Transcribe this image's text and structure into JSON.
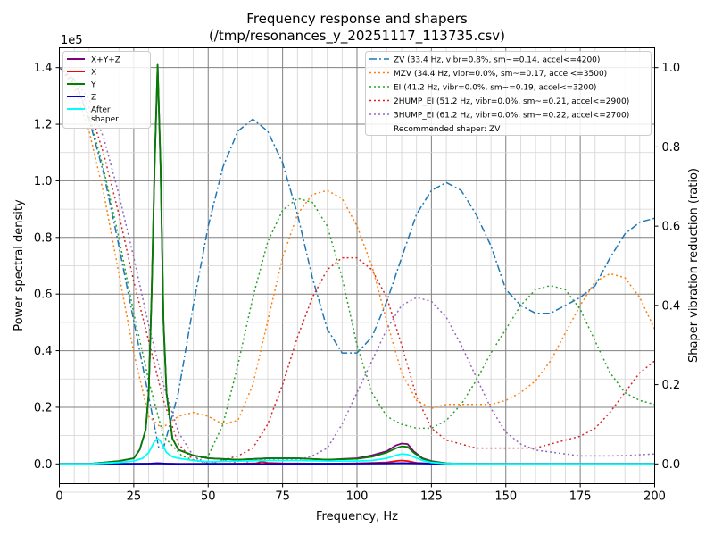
{
  "chart_data": {
    "type": "line",
    "title": "Frequency response and shapers",
    "subtitle": "(/tmp/resonances_y_20251117_113735.csv)",
    "xlabel": "Frequency, Hz",
    "ylabel": "Power spectral density",
    "y2label": "Shaper vibration reduction (ratio)",
    "yscale_label": "1e5",
    "xlim": [
      0,
      200
    ],
    "ylim": [
      -0.07,
      1.47
    ],
    "y2lim": [
      -0.05,
      1.05
    ],
    "xticks": [
      0,
      25,
      50,
      75,
      100,
      125,
      150,
      175,
      200
    ],
    "yticks": [
      0.0,
      0.2,
      0.4,
      0.6,
      0.8,
      1.0,
      1.2,
      1.4
    ],
    "y2ticks": [
      0.0,
      0.2,
      0.4,
      0.6,
      0.8,
      1.0
    ],
    "xtick_labels": [
      "0",
      "25",
      "50",
      "75",
      "100",
      "125",
      "150",
      "175",
      "200"
    ],
    "ytick_labels": [
      "0.0",
      "0.2",
      "0.4",
      "0.6",
      "0.8",
      "1.0",
      "1.2",
      "1.4"
    ],
    "y2tick_labels": [
      "0.0",
      "0.2",
      "0.4",
      "0.6",
      "0.8",
      "1.0"
    ],
    "grid": true,
    "legend_left_position": "top-left",
    "legend_right_position": "top-right",
    "psd_series": [
      {
        "name": "X+Y+Z",
        "color": "#800080",
        "x": [
          0,
          10,
          20,
          25,
          27,
          29,
          30,
          31,
          32,
          33,
          34,
          35,
          36,
          38,
          40,
          45,
          50,
          60,
          70,
          80,
          90,
          100,
          105,
          110,
          113,
          115,
          117,
          119,
          122,
          125,
          130,
          140,
          160,
          200
        ],
        "y": [
          0,
          0,
          0.01,
          0.02,
          0.05,
          0.12,
          0.25,
          0.6,
          1.05,
          1.41,
          1.05,
          0.5,
          0.25,
          0.09,
          0.05,
          0.03,
          0.02,
          0.015,
          0.02,
          0.02,
          0.015,
          0.02,
          0.03,
          0.045,
          0.065,
          0.072,
          0.07,
          0.045,
          0.02,
          0.01,
          0.002,
          0,
          0,
          0
        ]
      },
      {
        "name": "X",
        "color": "#ff0000",
        "x": [
          0,
          30,
          33,
          36,
          40,
          60,
          66,
          68,
          70,
          75,
          90,
          100,
          110,
          113,
          115,
          117,
          120,
          125,
          130,
          200
        ],
        "y": [
          0,
          0.001,
          0.003,
          0.001,
          0,
          0.001,
          0.002,
          0.008,
          0.004,
          0.002,
          0.001,
          0.002,
          0.005,
          0.01,
          0.012,
          0.01,
          0.004,
          0.001,
          0,
          0
        ]
      },
      {
        "name": "Y",
        "color": "#008000",
        "x": [
          0,
          10,
          20,
          25,
          27,
          29,
          30,
          31,
          32,
          33,
          34,
          35,
          36,
          38,
          40,
          45,
          50,
          60,
          70,
          80,
          90,
          100,
          105,
          110,
          113,
          115,
          117,
          119,
          122,
          125,
          130,
          140,
          160,
          200
        ],
        "y": [
          0,
          0,
          0.01,
          0.02,
          0.05,
          0.12,
          0.25,
          0.6,
          1.05,
          1.41,
          1.05,
          0.5,
          0.25,
          0.09,
          0.05,
          0.03,
          0.02,
          0.015,
          0.02,
          0.02,
          0.015,
          0.018,
          0.025,
          0.04,
          0.055,
          0.062,
          0.06,
          0.04,
          0.018,
          0.009,
          0.002,
          0,
          0,
          0
        ]
      },
      {
        "name": "Z",
        "color": "#0000cd",
        "x": [
          0,
          20,
          30,
          33,
          36,
          40,
          60,
          100,
          110,
          115,
          120,
          130,
          200
        ],
        "y": [
          0,
          0,
          0.001,
          0.002,
          0.001,
          0,
          0,
          0.001,
          0.002,
          0.003,
          0.002,
          0,
          0
        ]
      },
      {
        "name": "After shaper",
        "color": "#00ffff",
        "x": [
          0,
          10,
          20,
          25,
          28,
          30,
          31,
          32,
          33,
          34,
          35,
          36,
          38,
          40,
          45,
          50,
          60,
          70,
          80,
          90,
          100,
          105,
          110,
          113,
          115,
          117,
          119,
          122,
          125,
          130,
          140,
          200
        ],
        "y": [
          0,
          0,
          0.005,
          0.01,
          0.02,
          0.04,
          0.06,
          0.08,
          0.09,
          0.08,
          0.06,
          0.04,
          0.025,
          0.02,
          0.012,
          0.008,
          0.01,
          0.012,
          0.012,
          0.01,
          0.01,
          0.012,
          0.02,
          0.03,
          0.035,
          0.033,
          0.025,
          0.012,
          0.005,
          0.001,
          0,
          0
        ]
      }
    ],
    "shaper_series": [
      {
        "name": "ZV (33.4 Hz, vibr=0.8%, sm~=0.14, accel<=4200)",
        "color": "#1f77b4",
        "dash": "8,3,2,3",
        "x": [
          0,
          5,
          10,
          15,
          20,
          25,
          30,
          33.4,
          35,
          40,
          45,
          50,
          55,
          60,
          65,
          70,
          75,
          80,
          85,
          90,
          95,
          100,
          105,
          110,
          115,
          120,
          125,
          130,
          135,
          140,
          145,
          150,
          155,
          160,
          165,
          170,
          175,
          180,
          185,
          190,
          195,
          200
        ],
        "y": [
          1,
          0.97,
          0.87,
          0.73,
          0.55,
          0.36,
          0.17,
          0.04,
          0.04,
          0.18,
          0.4,
          0.6,
          0.75,
          0.84,
          0.87,
          0.84,
          0.76,
          0.63,
          0.47,
          0.34,
          0.28,
          0.28,
          0.32,
          0.41,
          0.52,
          0.63,
          0.69,
          0.71,
          0.69,
          0.63,
          0.55,
          0.44,
          0.4,
          0.38,
          0.38,
          0.4,
          0.42,
          0.45,
          0.52,
          0.58,
          0.61,
          0.62
        ]
      },
      {
        "name": "MZV (34.4 Hz, vibr=0.0%, sm~=0.17, accel<=3500)",
        "color": "#ff7f0e",
        "dash": "2,3",
        "x": [
          0,
          5,
          10,
          15,
          20,
          25,
          30,
          34.4,
          40,
          45,
          50,
          55,
          60,
          65,
          70,
          75,
          80,
          85,
          90,
          95,
          100,
          105,
          110,
          115,
          120,
          125,
          130,
          135,
          140,
          145,
          150,
          155,
          160,
          165,
          170,
          175,
          180,
          185,
          190,
          195,
          200
        ],
        "y": [
          1,
          0.95,
          0.84,
          0.68,
          0.48,
          0.28,
          0.12,
          0.09,
          0.12,
          0.13,
          0.12,
          0.1,
          0.11,
          0.2,
          0.36,
          0.52,
          0.63,
          0.68,
          0.69,
          0.67,
          0.6,
          0.5,
          0.36,
          0.23,
          0.16,
          0.14,
          0.15,
          0.15,
          0.15,
          0.15,
          0.16,
          0.18,
          0.21,
          0.26,
          0.33,
          0.4,
          0.46,
          0.48,
          0.47,
          0.42,
          0.34
        ]
      },
      {
        "name": "EI (41.2 Hz, vibr=0.0%, sm~=0.19, accel<=3200)",
        "color": "#2ca02c",
        "dash": "2,3",
        "x": [
          0,
          5,
          10,
          15,
          20,
          25,
          30,
          35,
          41.2,
          45,
          50,
          55,
          60,
          65,
          70,
          75,
          80,
          85,
          90,
          95,
          100,
          105,
          110,
          115,
          120,
          125,
          130,
          135,
          140,
          145,
          150,
          155,
          160,
          165,
          170,
          175,
          180,
          185,
          190,
          195,
          200
        ],
        "y": [
          1,
          0.96,
          0.88,
          0.74,
          0.57,
          0.38,
          0.21,
          0.07,
          0.02,
          0.01,
          0.02,
          0.1,
          0.25,
          0.42,
          0.56,
          0.64,
          0.67,
          0.66,
          0.6,
          0.47,
          0.3,
          0.18,
          0.12,
          0.1,
          0.09,
          0.09,
          0.11,
          0.15,
          0.21,
          0.28,
          0.34,
          0.4,
          0.44,
          0.45,
          0.44,
          0.39,
          0.31,
          0.23,
          0.18,
          0.16,
          0.15
        ]
      },
      {
        "name": "2HUMP_EI (51.2 Hz, vibr=0.0%, sm~=0.21, accel<=2900)",
        "color": "#d62728",
        "dash": "2,3",
        "x": [
          0,
          5,
          10,
          15,
          20,
          25,
          30,
          35,
          40,
          45,
          51.2,
          55,
          60,
          65,
          70,
          75,
          80,
          85,
          90,
          95,
          100,
          105,
          110,
          115,
          120,
          125,
          130,
          135,
          140,
          145,
          150,
          155,
          160,
          165,
          170,
          175,
          180,
          185,
          190,
          195,
          200
        ],
        "y": [
          1,
          0.96,
          0.9,
          0.78,
          0.63,
          0.46,
          0.31,
          0.16,
          0.05,
          0.01,
          0.0,
          0.01,
          0.02,
          0.04,
          0.1,
          0.2,
          0.32,
          0.42,
          0.49,
          0.52,
          0.52,
          0.49,
          0.42,
          0.3,
          0.17,
          0.09,
          0.06,
          0.05,
          0.04,
          0.04,
          0.04,
          0.04,
          0.04,
          0.05,
          0.06,
          0.07,
          0.09,
          0.13,
          0.18,
          0.23,
          0.26
        ]
      },
      {
        "name": "3HUMP_EI (61.2 Hz, vibr=0.0%, sm~=0.22, accel<=2700)",
        "color": "#9467bd",
        "dash": "2,3",
        "x": [
          0,
          5,
          10,
          15,
          20,
          25,
          30,
          35,
          40,
          45,
          50,
          55,
          61.2,
          65,
          70,
          75,
          80,
          85,
          90,
          95,
          100,
          105,
          110,
          115,
          120,
          125,
          130,
          135,
          140,
          145,
          150,
          155,
          160,
          165,
          170,
          175,
          180,
          185,
          190,
          195,
          200
        ],
        "y": [
          1,
          0.97,
          0.92,
          0.82,
          0.68,
          0.52,
          0.35,
          0.2,
          0.08,
          0.02,
          0.0,
          0.01,
          0.0,
          0.01,
          0.01,
          0.01,
          0.01,
          0.02,
          0.04,
          0.1,
          0.18,
          0.26,
          0.34,
          0.4,
          0.42,
          0.41,
          0.37,
          0.3,
          0.22,
          0.14,
          0.08,
          0.05,
          0.035,
          0.03,
          0.025,
          0.02,
          0.02,
          0.02,
          0.021,
          0.023,
          0.025
        ]
      }
    ],
    "legend_left": [
      {
        "label": "X+Y+Z",
        "color": "#800080"
      },
      {
        "label": "X",
        "color": "#ff0000"
      },
      {
        "label": "Y",
        "color": "#008000"
      },
      {
        "label": "Z",
        "color": "#0000cd"
      },
      {
        "label": "After",
        "label2": "shaper",
        "color": "#00ffff"
      }
    ],
    "legend_right": [
      {
        "label": "ZV (33.4 Hz, vibr=0.8%, sm~=0.14, accel<=4200)",
        "color": "#1f77b4",
        "dash": "8,3,2,3"
      },
      {
        "label": "MZV (34.4 Hz, vibr=0.0%, sm~=0.17, accel<=3500)",
        "color": "#ff7f0e",
        "dash": "2,3"
      },
      {
        "label": "EI (41.2 Hz, vibr=0.0%, sm~=0.19, accel<=3200)",
        "color": "#2ca02c",
        "dash": "2,3"
      },
      {
        "label": "2HUMP_EI (51.2 Hz, vibr=0.0%, sm~=0.21, accel<=2900)",
        "color": "#d62728",
        "dash": "2,3"
      },
      {
        "label": "3HUMP_EI (61.2 Hz, vibr=0.0%, sm~=0.22, accel<=2700)",
        "color": "#9467bd",
        "dash": "2,3"
      },
      {
        "label": "Recommended shaper: ZV",
        "color": "",
        "dash": ""
      }
    ]
  }
}
